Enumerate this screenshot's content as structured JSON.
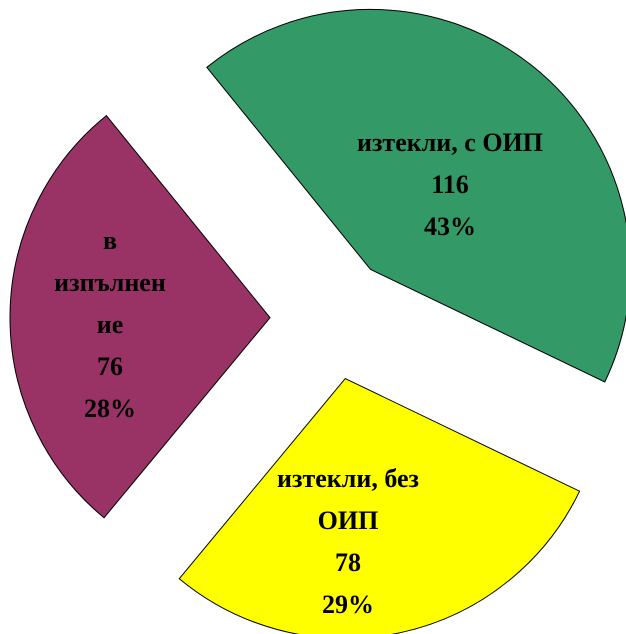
{
  "chart_data": {
    "type": "pie",
    "categories": [
      "изтекли, с ОИП",
      "изтекли, без ОИП",
      "в изпълнение"
    ],
    "values": [
      116,
      78,
      76
    ],
    "percentages": [
      43,
      29,
      28
    ],
    "percentage_labels": [
      "43%",
      "29%",
      "28%"
    ],
    "colors": [
      "#339966",
      "#ffff00",
      "#993366"
    ]
  }
}
